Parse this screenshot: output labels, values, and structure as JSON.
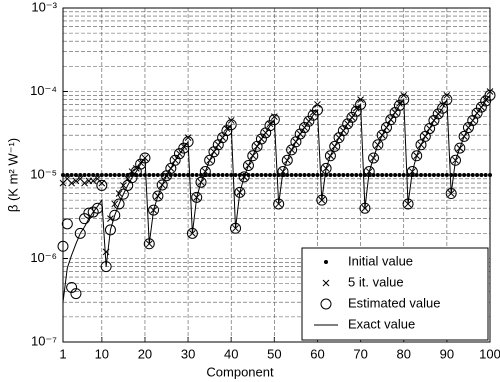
{
  "chart_data": {
    "type": "scatter",
    "xlabel": "Component",
    "ylabel": "β (K m² W⁻¹)",
    "xlim": [
      1,
      100
    ],
    "xticks": [
      1,
      10,
      20,
      30,
      40,
      50,
      60,
      70,
      80,
      90,
      100
    ],
    "ylim": [
      1e-07,
      0.001
    ],
    "yticks": [
      {
        "value": 1e-07,
        "label": "10⁻⁷"
      },
      {
        "value": 1e-06,
        "label": "10⁻⁶"
      },
      {
        "value": 1e-05,
        "label": "10⁻⁵"
      },
      {
        "value": 0.0001,
        "label": "10⁻⁴"
      },
      {
        "value": 0.001,
        "label": "10⁻³"
      }
    ],
    "log_y": true,
    "grid": true,
    "legend": "lower right",
    "x": [
      1,
      2,
      3,
      4,
      5,
      6,
      7,
      8,
      9,
      10,
      11,
      12,
      13,
      14,
      15,
      16,
      17,
      18,
      19,
      20,
      21,
      22,
      23,
      24,
      25,
      26,
      27,
      28,
      29,
      30,
      31,
      32,
      33,
      34,
      35,
      36,
      37,
      38,
      39,
      40,
      41,
      42,
      43,
      44,
      45,
      46,
      47,
      48,
      49,
      50,
      51,
      52,
      53,
      54,
      55,
      56,
      57,
      58,
      59,
      60,
      61,
      62,
      63,
      64,
      65,
      66,
      67,
      68,
      69,
      70,
      71,
      72,
      73,
      74,
      75,
      76,
      77,
      78,
      79,
      80,
      81,
      82,
      83,
      84,
      85,
      86,
      87,
      88,
      89,
      90,
      91,
      92,
      93,
      94,
      95,
      96,
      97,
      98,
      99,
      100
    ],
    "series": [
      {
        "name": "Initial value",
        "marker": "dot",
        "color": "#000000",
        "values": [
          1e-05,
          1e-05,
          1e-05,
          1e-05,
          1e-05,
          1e-05,
          1e-05,
          1e-05,
          1e-05,
          1e-05,
          1e-05,
          1e-05,
          1e-05,
          1e-05,
          1e-05,
          1e-05,
          1e-05,
          1e-05,
          1e-05,
          1e-05,
          1e-05,
          1e-05,
          1e-05,
          1e-05,
          1e-05,
          1e-05,
          1e-05,
          1e-05,
          1e-05,
          1e-05,
          1e-05,
          1e-05,
          1e-05,
          1e-05,
          1e-05,
          1e-05,
          1e-05,
          1e-05,
          1e-05,
          1e-05,
          1e-05,
          1e-05,
          1e-05,
          1e-05,
          1e-05,
          1e-05,
          1e-05,
          1e-05,
          1e-05,
          1e-05,
          1e-05,
          1e-05,
          1e-05,
          1e-05,
          1e-05,
          1e-05,
          1e-05,
          1e-05,
          1e-05,
          1e-05,
          1e-05,
          1e-05,
          1e-05,
          1e-05,
          1e-05,
          1e-05,
          1e-05,
          1e-05,
          1e-05,
          1e-05,
          1e-05,
          1e-05,
          1e-05,
          1e-05,
          1e-05,
          1e-05,
          1e-05,
          1e-05,
          1e-05,
          1e-05,
          1e-05,
          1e-05,
          1e-05,
          1e-05,
          1e-05,
          1e-05,
          1e-05,
          1e-05,
          1e-05,
          1e-05,
          1e-05,
          1e-05,
          1e-05,
          1e-05,
          1e-05,
          1e-05,
          1e-05,
          1e-05,
          1e-05,
          1e-05
        ]
      },
      {
        "name": "5 it. value",
        "marker": "x",
        "color": "#000000",
        "values": [
          8e-06,
          9e-06,
          8e-06,
          8.5e-06,
          9e-06,
          8e-06,
          8.5e-06,
          8.5e-06,
          9e-06,
          8e-06,
          1.2e-06,
          3e-06,
          4.5e-06,
          6e-06,
          7.5e-06,
          9e-06,
          1.1e-05,
          1.2e-05,
          1.4e-05,
          1.6e-05,
          1.5e-06,
          3.8e-06,
          5.6e-06,
          7.6e-06,
          9.8e-06,
          1.2e-05,
          1.5e-05,
          1.8e-05,
          2.2e-05,
          2.8e-05,
          2e-06,
          5.4e-06,
          8.2e-06,
          1.1e-05,
          1.5e-05,
          1.9e-05,
          2.3e-05,
          2.8e-05,
          3.6e-05,
          4.5e-05,
          2.3e-06,
          6.2e-06,
          9.5e-06,
          1.3e-05,
          1.7e-05,
          2.2e-05,
          2.7e-05,
          3.2e-05,
          4.1e-05,
          5e-05,
          4.5e-06,
          1.1e-05,
          1.5e-05,
          2e-05,
          2.5e-05,
          3.1e-05,
          3.7e-05,
          4.4e-05,
          5.6e-05,
          7e-05,
          5e-06,
          1.2e-05,
          1.7e-05,
          2.2e-05,
          2.8e-05,
          3.4e-05,
          4.1e-05,
          4.9e-05,
          6.3e-05,
          8e-05,
          4e-06,
          1.1e-05,
          1.6e-05,
          2.3e-05,
          3e-05,
          3.7e-05,
          4.6e-05,
          5.6e-05,
          7.2e-05,
          9e-05,
          4.5e-06,
          1.1e-05,
          1.7e-05,
          2.3e-05,
          2.9e-05,
          3.6e-05,
          4.5e-05,
          5.4e-05,
          7e-05,
          9e-05,
          6e-06,
          1.5e-05,
          2.1e-05,
          2.9e-05,
          3.7e-05,
          4.5e-05,
          5.5e-05,
          6.5e-05,
          8e-05,
          0.0001
        ]
      },
      {
        "name": "Estimated value",
        "marker": "circle",
        "color": "#000000",
        "values": [
          1.4e-06,
          2.6e-06,
          4.5e-07,
          3.8e-07,
          2e-06,
          3e-06,
          3.5e-06,
          3.6e-06,
          4e-06,
          7.5e-06,
          8e-07,
          2.2e-06,
          3.3e-06,
          4.5e-06,
          5.9e-06,
          7.5e-06,
          9.3e-06,
          1.1e-05,
          1.35e-05,
          1.6e-05,
          1.5e-06,
          3.8e-06,
          5.6e-06,
          7.6e-06,
          9.8e-06,
          1.2e-05,
          1.5e-05,
          1.8e-05,
          2.1e-05,
          2.5e-05,
          2e-06,
          5.4e-06,
          8.2e-06,
          1.1e-05,
          1.5e-05,
          1.9e-05,
          2.3e-05,
          2.8e-05,
          3.4e-05,
          4e-05,
          2.3e-06,
          6.2e-06,
          9.5e-06,
          1.3e-05,
          1.7e-05,
          2.2e-05,
          2.7e-05,
          3.2e-05,
          3.9e-05,
          4.6e-05,
          4.5e-06,
          1.1e-05,
          1.5e-05,
          2e-05,
          2.5e-05,
          3.1e-05,
          3.7e-05,
          4.4e-05,
          5.2e-05,
          6e-05,
          5e-06,
          1.2e-05,
          1.7e-05,
          2.2e-05,
          2.8e-05,
          3.4e-05,
          4.1e-05,
          4.9e-05,
          5.8e-05,
          7e-05,
          4e-06,
          1.1e-05,
          1.6e-05,
          2.3e-05,
          3e-05,
          3.7e-05,
          4.6e-05,
          5.6e-05,
          6.8e-05,
          8e-05,
          4.5e-06,
          1.1e-05,
          1.7e-05,
          2.3e-05,
          2.9e-05,
          3.6e-05,
          4.5e-05,
          5.4e-05,
          6.3e-05,
          8e-05,
          6e-06,
          1.5e-05,
          2.1e-05,
          2.9e-05,
          3.7e-05,
          4.5e-05,
          5.5e-05,
          6.5e-05,
          7.7e-05,
          9e-05
        ]
      },
      {
        "name": "Exact value",
        "marker": "line",
        "color": "#000000",
        "values": [
          3e-07,
          7.7e-07,
          1.1e-06,
          1.5e-06,
          2e-06,
          2.4e-06,
          3e-06,
          3.6e-06,
          4.2e-06,
          5e-06,
          8e-07,
          2.2e-06,
          3.3e-06,
          4.5e-06,
          5.9e-06,
          7.5e-06,
          9.3e-06,
          1.1e-05,
          1.35e-05,
          1.6e-05,
          1.5e-06,
          3.8e-06,
          5.6e-06,
          7.6e-06,
          9.8e-06,
          1.2e-05,
          1.5e-05,
          1.8e-05,
          2.1e-05,
          2.5e-05,
          2e-06,
          5.4e-06,
          8.2e-06,
          1.1e-05,
          1.5e-05,
          1.9e-05,
          2.3e-05,
          2.8e-05,
          3.4e-05,
          4e-05,
          2.3e-06,
          6.2e-06,
          9.5e-06,
          1.3e-05,
          1.7e-05,
          2.2e-05,
          2.7e-05,
          3.2e-05,
          3.9e-05,
          4.6e-05,
          4.5e-06,
          1.1e-05,
          1.5e-05,
          2e-05,
          2.5e-05,
          3.1e-05,
          3.7e-05,
          4.4e-05,
          5.2e-05,
          6e-05,
          5e-06,
          1.2e-05,
          1.7e-05,
          2.2e-05,
          2.8e-05,
          3.4e-05,
          4.1e-05,
          4.9e-05,
          5.8e-05,
          7e-05,
          4e-06,
          1.1e-05,
          1.6e-05,
          2.3e-05,
          3e-05,
          3.7e-05,
          4.6e-05,
          5.6e-05,
          6.8e-05,
          8e-05,
          4.5e-06,
          1.1e-05,
          1.7e-05,
          2.3e-05,
          2.9e-05,
          3.6e-05,
          4.5e-05,
          5.4e-05,
          6.3e-05,
          8e-05,
          6e-06,
          1.5e-05,
          2.1e-05,
          2.9e-05,
          3.7e-05,
          4.5e-05,
          5.5e-05,
          6.5e-05,
          7.7e-05,
          9e-05
        ]
      }
    ]
  }
}
